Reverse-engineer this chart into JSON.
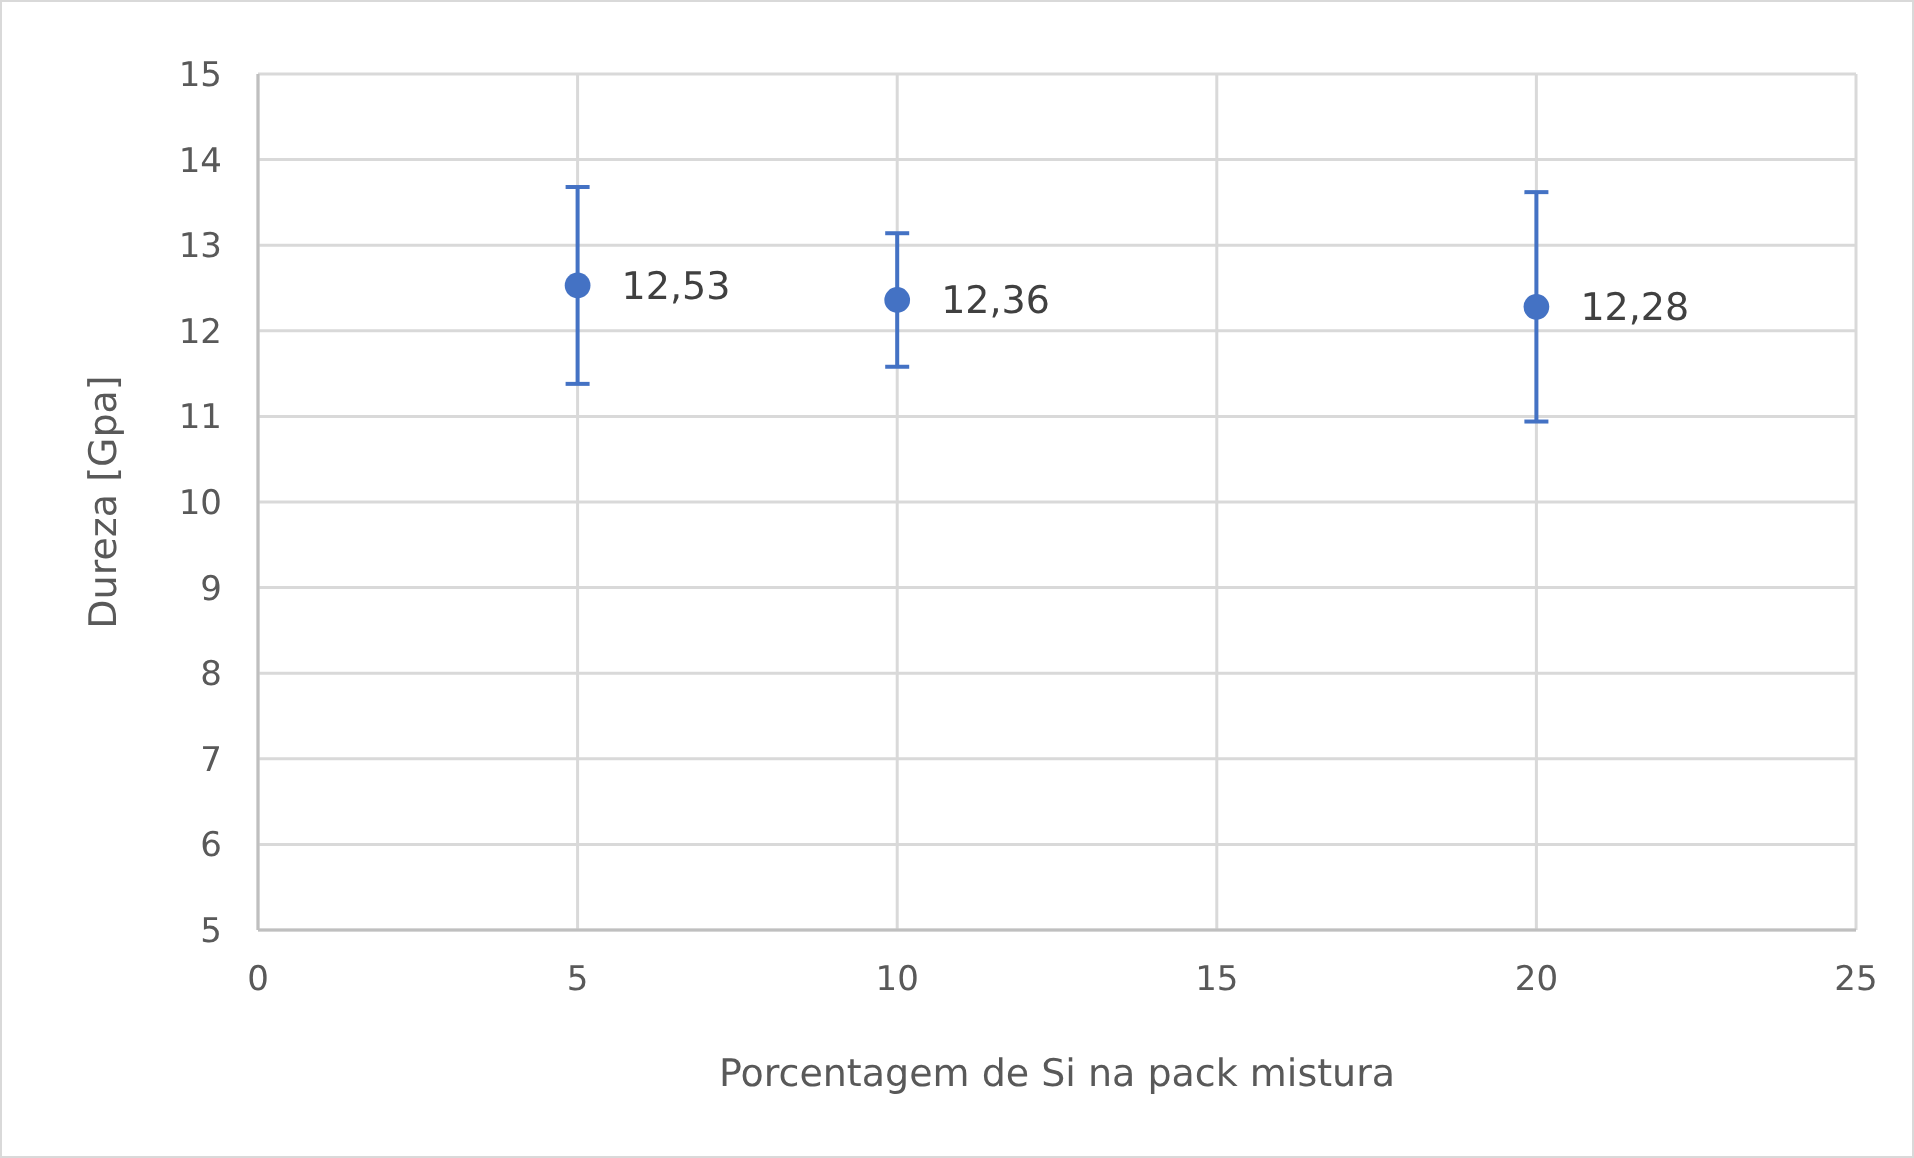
{
  "chart_data": {
    "type": "scatter",
    "xlabel": "Porcentagem de Si na pack mistura",
    "ylabel": "Dureza [Gpa]",
    "x": [
      5,
      10,
      20
    ],
    "values": [
      12.53,
      12.36,
      12.28
    ],
    "errors": [
      1.15,
      0.78,
      1.34
    ],
    "value_labels": [
      "12,53",
      "12,36",
      "12,28"
    ],
    "color": "#4472c4",
    "marker": "circle",
    "xlim": [
      0,
      25
    ],
    "xticks": [
      0,
      5,
      10,
      15,
      20,
      25
    ],
    "ylim": [
      5,
      15
    ],
    "yticks": [
      5,
      6,
      7,
      8,
      9,
      10,
      11,
      12,
      13,
      14,
      15
    ],
    "grid": true
  }
}
